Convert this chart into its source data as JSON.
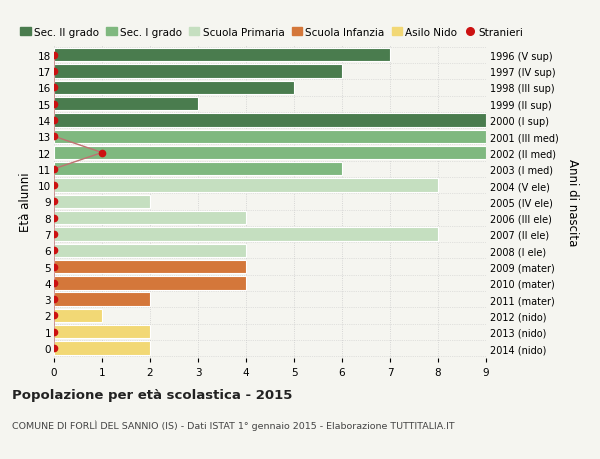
{
  "ages": [
    18,
    17,
    16,
    15,
    14,
    13,
    12,
    11,
    10,
    9,
    8,
    7,
    6,
    5,
    4,
    3,
    2,
    1,
    0
  ],
  "years": [
    "1996 (V sup)",
    "1997 (IV sup)",
    "1998 (III sup)",
    "1999 (II sup)",
    "2000 (I sup)",
    "2001 (III med)",
    "2002 (II med)",
    "2003 (I med)",
    "2004 (V ele)",
    "2005 (IV ele)",
    "2006 (III ele)",
    "2007 (II ele)",
    "2008 (I ele)",
    "2009 (mater)",
    "2010 (mater)",
    "2011 (mater)",
    "2012 (nido)",
    "2013 (nido)",
    "2014 (nido)"
  ],
  "bar_values": [
    7,
    6,
    5,
    3,
    9,
    9,
    9,
    6,
    8,
    2,
    4,
    8,
    4,
    4,
    4,
    2,
    1,
    2,
    2
  ],
  "bar_colors": [
    "#4a7c4e",
    "#4a7c4e",
    "#4a7c4e",
    "#4a7c4e",
    "#4a7c4e",
    "#7fb87f",
    "#7fb87f",
    "#7fb87f",
    "#c5dfc0",
    "#c5dfc0",
    "#c5dfc0",
    "#c5dfc0",
    "#c5dfc0",
    "#d4773a",
    "#d4773a",
    "#d4773a",
    "#f2d875",
    "#f2d875",
    "#f2d875"
  ],
  "stranieri_ages": [
    18,
    17,
    16,
    15,
    14,
    13,
    12,
    11,
    10,
    9,
    8,
    7,
    6,
    5,
    4,
    3,
    2,
    1,
    0
  ],
  "stranieri_values": [
    0,
    0,
    0,
    0,
    0,
    0,
    1,
    0,
    0,
    0,
    0,
    0,
    0,
    0,
    0,
    0,
    0,
    0,
    0
  ],
  "legend_labels": [
    "Sec. II grado",
    "Sec. I grado",
    "Scuola Primaria",
    "Scuola Infanzia",
    "Asilo Nido",
    "Stranieri"
  ],
  "legend_colors": [
    "#4a7c4e",
    "#7fb87f",
    "#c5dfc0",
    "#d4773a",
    "#f2d875",
    "#cc1111"
  ],
  "ylabel_left": "Età alunni",
  "ylabel_right": "Anni di nascita",
  "title": "Popolazione per età scolastica - 2015",
  "subtitle": "COMUNE DI FORLÌ DEL SANNIO (IS) - Dati ISTAT 1° gennaio 2015 - Elaborazione TUTTITALIA.IT",
  "xlim": [
    0,
    9
  ],
  "background_color": "#f5f5f0",
  "bar_height": 0.82,
  "stranieri_color": "#cc1111",
  "stranieri_line_color": "#c07070"
}
